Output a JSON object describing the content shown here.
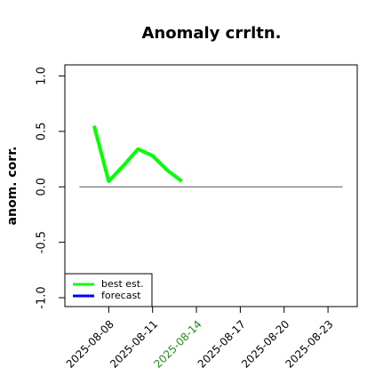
{
  "chart_data": {
    "type": "line",
    "title": "Anomaly crrltn.",
    "ylabel": "anom. corr.",
    "x": [
      "2025-08-07",
      "2025-08-08",
      "2025-08-09",
      "2025-08-10",
      "2025-08-11",
      "2025-08-12",
      "2025-08-13"
    ],
    "series": [
      {
        "name": "best est.",
        "color": "#00ff00",
        "values": [
          0.55,
          0.05,
          0.19,
          0.34,
          0.28,
          0.15,
          0.05
        ]
      },
      {
        "name": "forecast",
        "color": "#0000ff",
        "values": [
          null,
          null,
          null,
          null,
          null,
          null,
          null
        ]
      }
    ],
    "xlim": [
      "2025-08-05",
      "2025-08-25"
    ],
    "xticks": [
      "2025-08-08",
      "2025-08-11",
      "2025-08-14",
      "2025-08-17",
      "2025-08-20",
      "2025-08-23"
    ],
    "xtick_colors": [
      "black",
      "black",
      "#228b22",
      "black",
      "black",
      "black"
    ],
    "ylim": [
      -1.08,
      1.1
    ],
    "yticks": [
      {
        "value": -1,
        "label": "-1.0"
      },
      {
        "value": -0.5,
        "label": "-0.5"
      },
      {
        "value": 0,
        "label": "0.0"
      },
      {
        "value": 0.5,
        "label": "0.5"
      },
      {
        "value": 1,
        "label": "1.0"
      }
    ],
    "reference_line": {
      "y": 0,
      "x": [
        "2025-08-06",
        "2025-08-24"
      ],
      "color": "#555555"
    },
    "legend": "bottomleft"
  }
}
